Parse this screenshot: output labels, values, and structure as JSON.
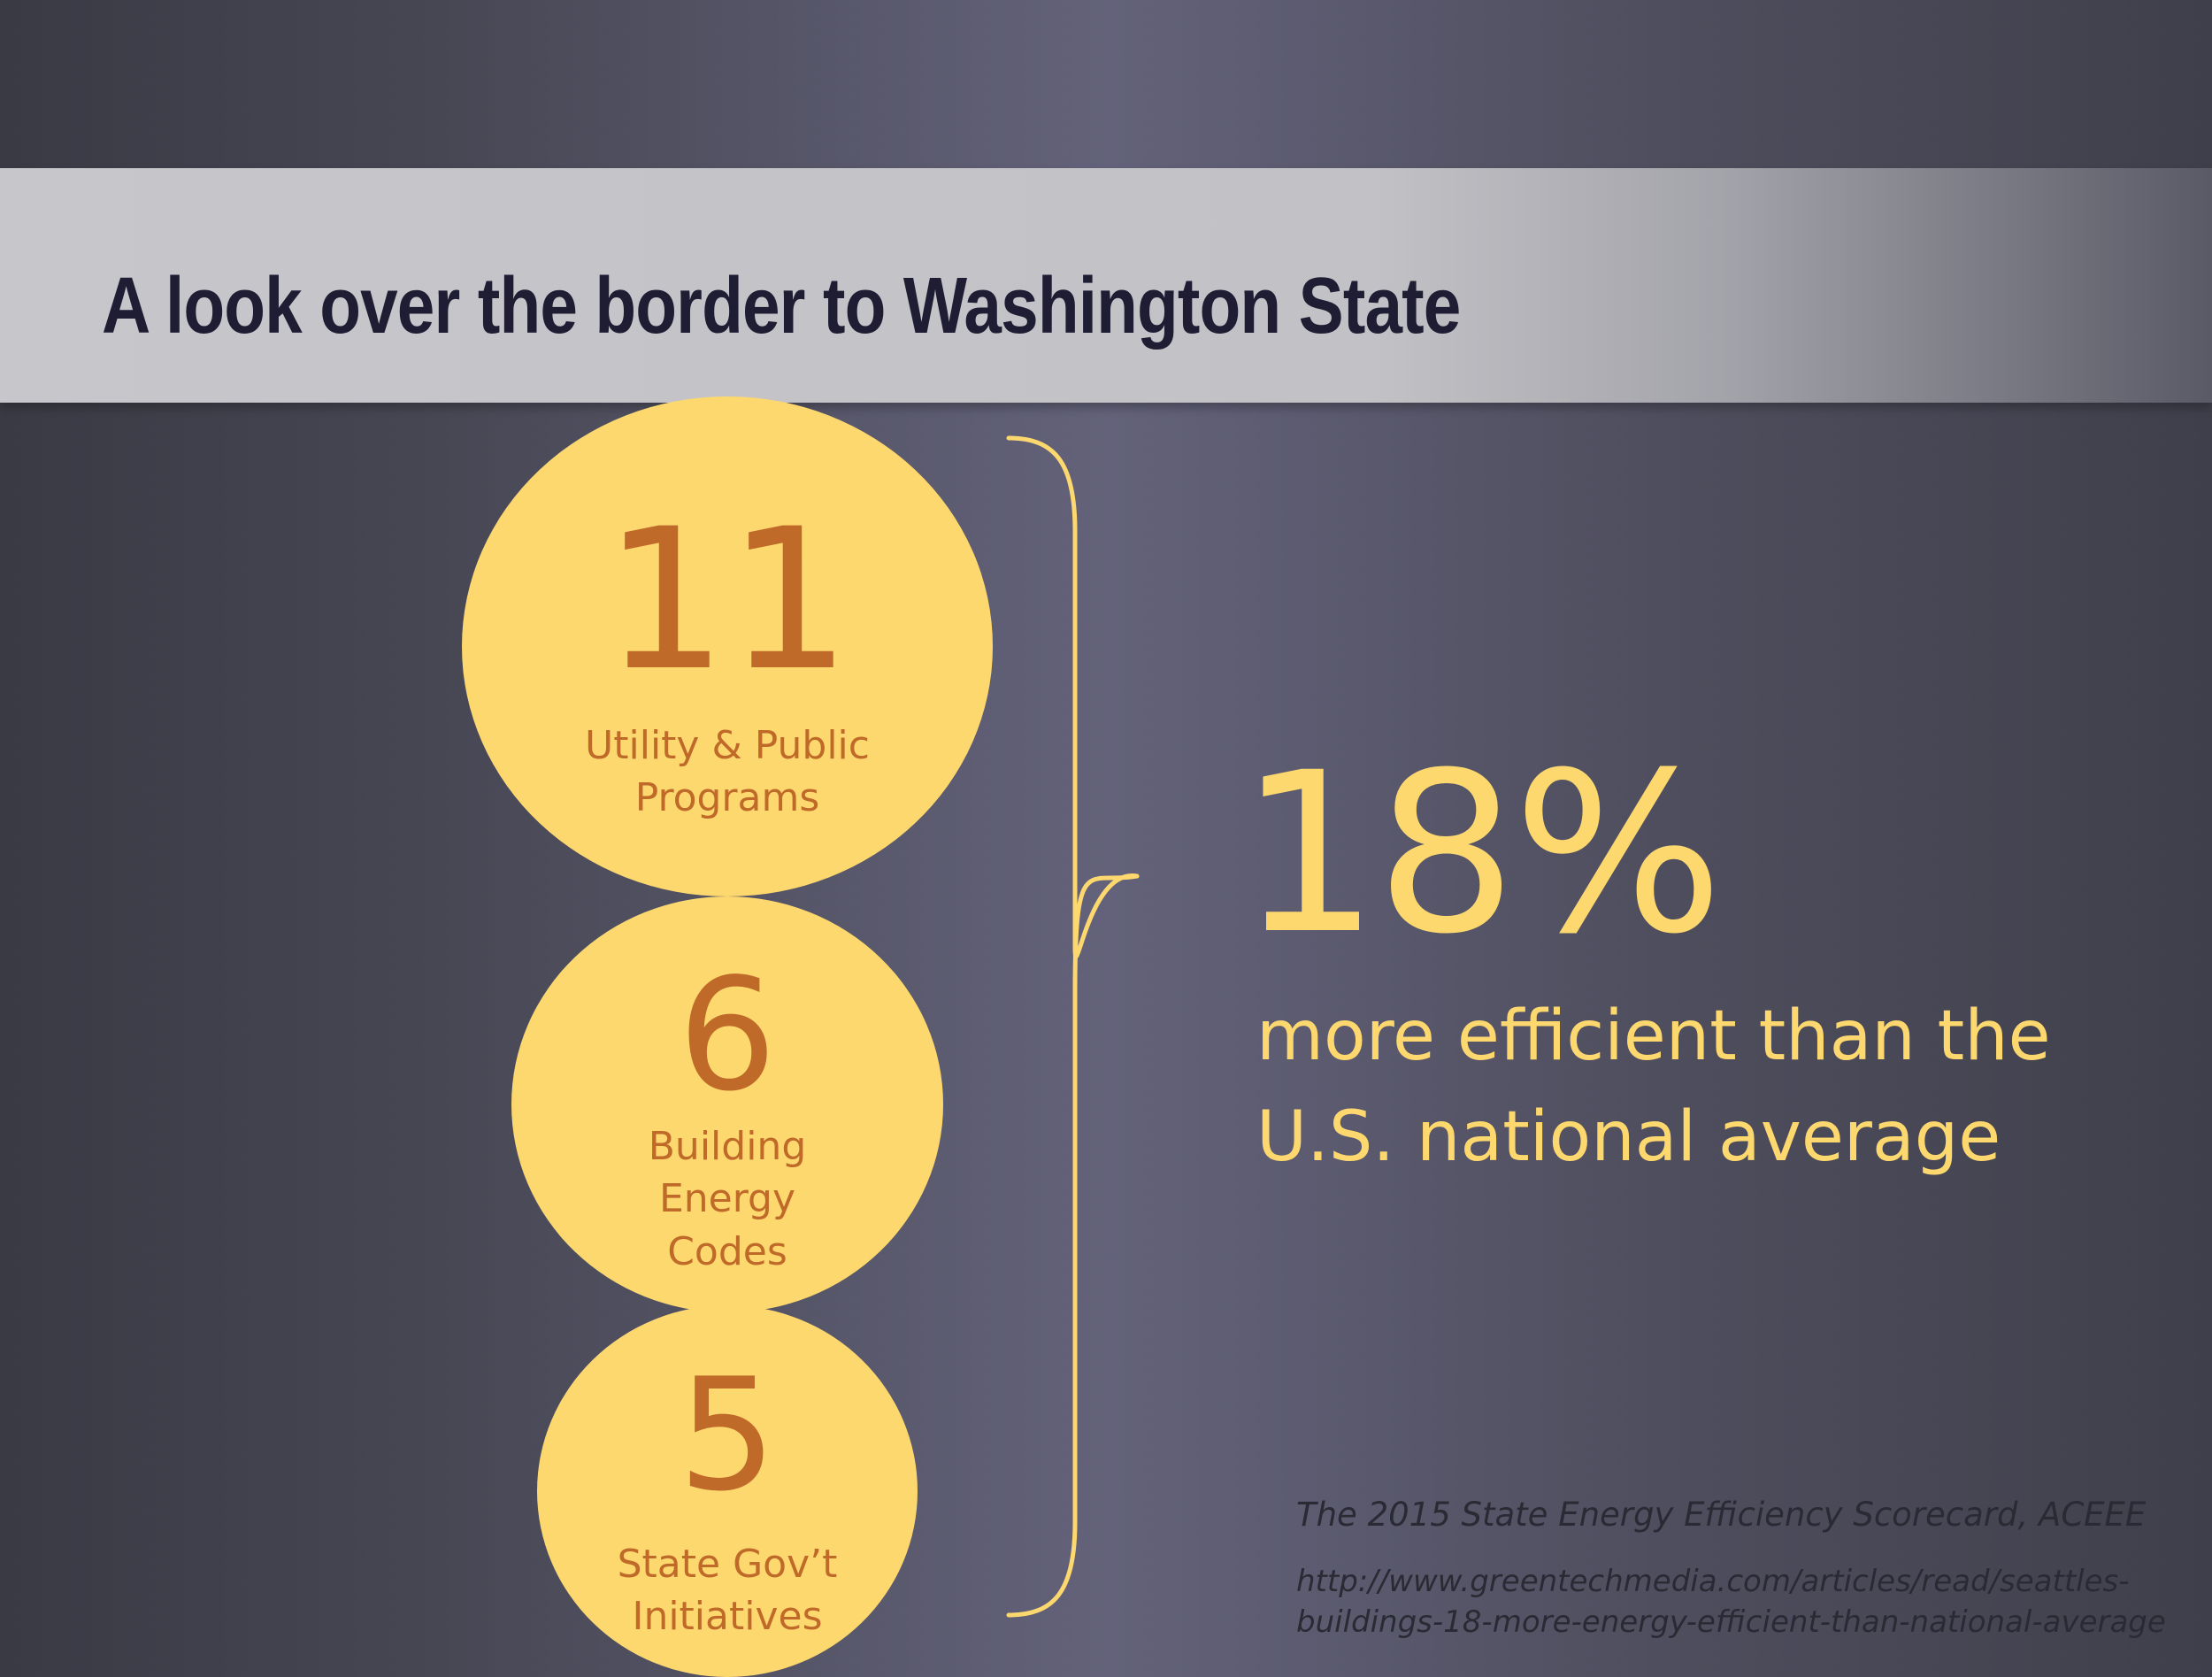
{
  "title": "A look over the border to Washington State",
  "stats": [
    {
      "number": "11",
      "label_line1": "Utility & Public",
      "label_line2": "Programs",
      "label_line3": ""
    },
    {
      "number": "6",
      "label_line1": "Building",
      "label_line2": "Energy",
      "label_line3": "Codes"
    },
    {
      "number": "5",
      "label_line1": "State Gov’t",
      "label_line2": "Initiatives",
      "label_line3": ""
    }
  ],
  "headline": {
    "value": "18%",
    "line1": "more efficient than the",
    "line2": "U.S. national average"
  },
  "source": "The 2015 State Energy Efficiency Scorecard, ACEEE",
  "url_line1": "http://www.greentechmedia.com/articles/read/seattles-",
  "url_line2": "buildings-18-more-energy-efficient-than-national-average",
  "colors": {
    "accent_yellow": "#fdd86e",
    "number_orange": "#c06a2a",
    "title_navy": "#1f1d33"
  }
}
